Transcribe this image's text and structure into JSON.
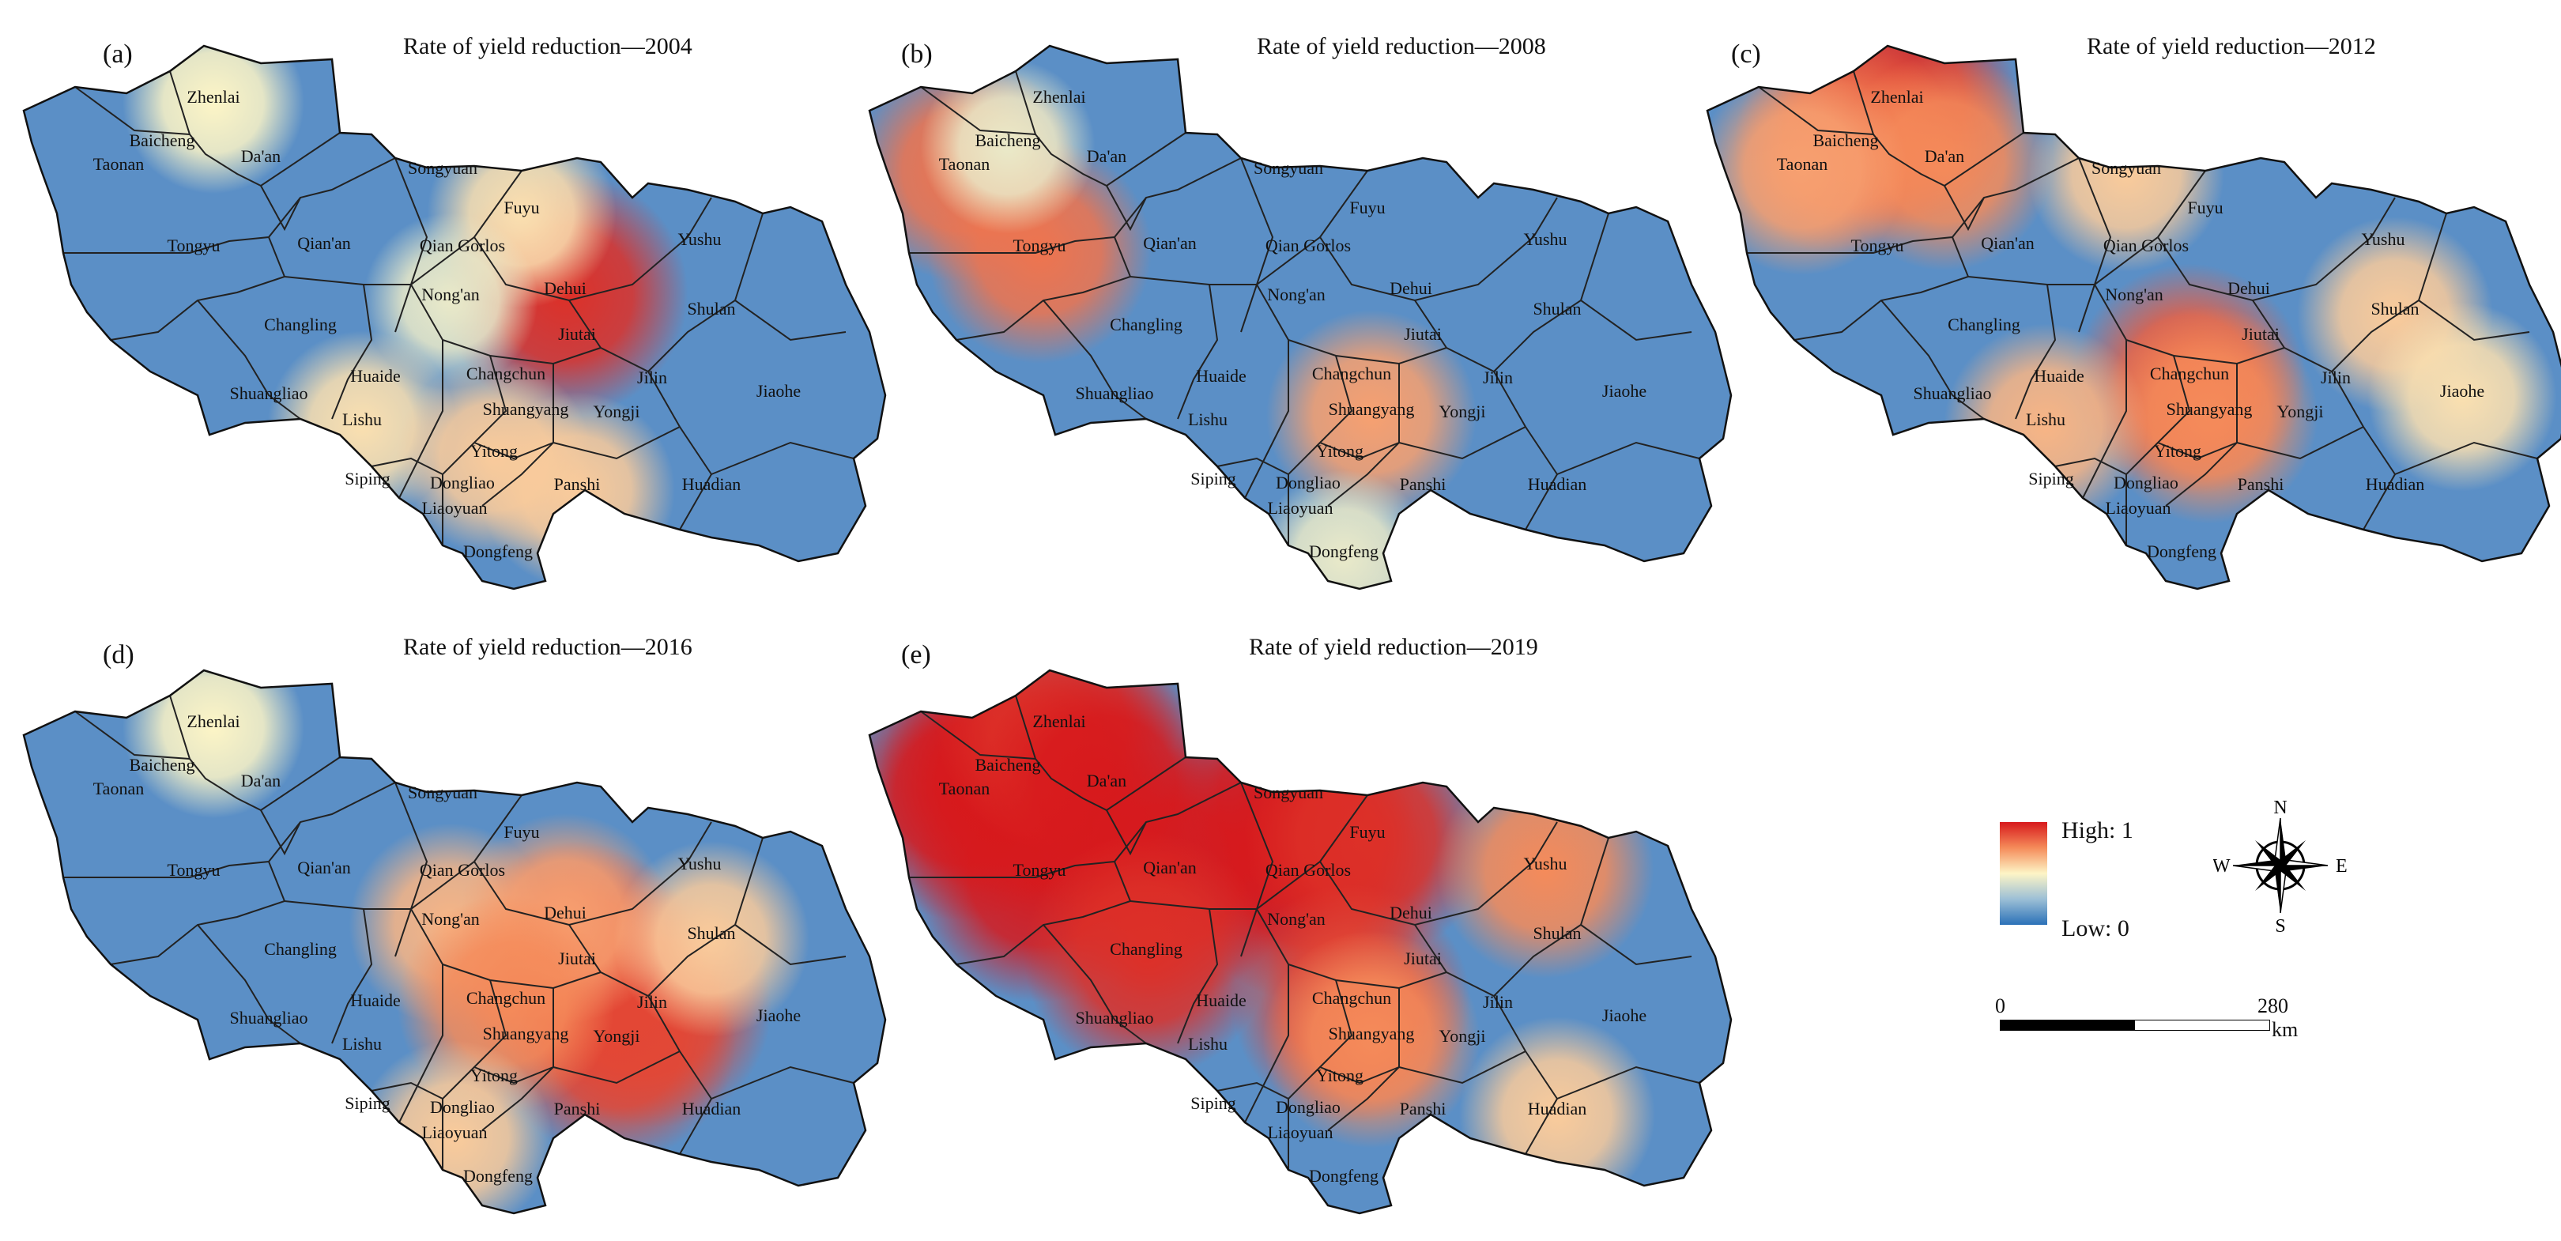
{
  "panels": [
    {
      "letter": "(a)",
      "title": "Rate of yield reduction—2004",
      "year": 2004,
      "hot": [
        [
          "Dehui",
          0.95
        ],
        [
          "Zhenlai",
          0.5
        ],
        [
          "Fuyu",
          0.55
        ],
        [
          "Nong'an",
          0.45
        ],
        [
          "Lishu",
          0.55
        ],
        [
          "Panshi",
          0.6
        ],
        [
          "Yitong",
          0.6
        ]
      ]
    },
    {
      "letter": "(b)",
      "title": "Rate of yield reduction—2008",
      "year": 2008,
      "hot": [
        [
          "Taonan",
          0.8
        ],
        [
          "Tongyu",
          0.8
        ],
        [
          "Baicheng",
          0.45
        ],
        [
          "Shuangyang",
          0.7
        ],
        [
          "Dongfeng",
          0.45
        ]
      ]
    },
    {
      "letter": "(c)",
      "title": "Rate of yield reduction—2012",
      "year": 2012,
      "hot": [
        [
          "Zhenlai",
          0.95
        ],
        [
          "Baicheng",
          0.8
        ],
        [
          "Da'an",
          0.75
        ],
        [
          "Taonan",
          0.7
        ],
        [
          "Changchun",
          0.85
        ],
        [
          "Shuangyang",
          0.75
        ],
        [
          "Shulan",
          0.6
        ],
        [
          "Jiaohe",
          0.55
        ],
        [
          "Lishu",
          0.65
        ],
        [
          "Songyuan",
          0.6
        ]
      ]
    },
    {
      "letter": "(d)",
      "title": "Rate of yield reduction—2016",
      "year": 2016,
      "hot": [
        [
          "Jiutai",
          0.95
        ],
        [
          "Jilin",
          0.9
        ],
        [
          "Yongji",
          0.9
        ],
        [
          "Nong'an",
          0.65
        ],
        [
          "Dehui",
          0.7
        ],
        [
          "Changchun",
          0.75
        ],
        [
          "Liaoyuan",
          0.6
        ],
        [
          "Zhenlai",
          0.5
        ],
        [
          "Shulan",
          0.6
        ]
      ]
    },
    {
      "letter": "(e)",
      "title": "Rate of yield reduction—2019",
      "year": 2019,
      "hot": [
        [
          "Tongyu",
          1
        ],
        [
          "Taonan",
          1
        ],
        [
          "Baicheng",
          1
        ],
        [
          "Zhenlai",
          0.95
        ],
        [
          "Da'an",
          1
        ],
        [
          "Qian'an",
          1
        ],
        [
          "Qian Gorlos",
          1
        ],
        [
          "Songyuan",
          1
        ],
        [
          "Fuyu",
          0.95
        ],
        [
          "Changling",
          0.95
        ],
        [
          "Yushu",
          0.75
        ],
        [
          "Changchun",
          0.9
        ],
        [
          "Shuangyang",
          0.75
        ],
        [
          "Huadian",
          0.6
        ]
      ]
    }
  ],
  "places": [
    "Zhenlai",
    "Baicheng",
    "Taonan",
    "Da'an",
    "Songyuan",
    "Fuyu",
    "Yushu",
    "Tongyu",
    "Qian'an",
    "Qian Gorlos",
    "Nong'an",
    "Dehui",
    "Jiutai",
    "Shulan",
    "Changling",
    "Huaide",
    "Changchun",
    "Shuangliao",
    "Jilin",
    "Jiaohe",
    "Lishu",
    "Shuangyang",
    "Yongji",
    "Yitong",
    "Siping",
    "Dongliao",
    "Liaoyuan",
    "Panshi",
    "Huadian",
    "Dongfeng"
  ],
  "legend": {
    "high": "High: 1",
    "low": "Low: 0",
    "colors": [
      "#d7191c",
      "#fdf5c6",
      "#2b71b8"
    ]
  },
  "compass": {
    "n": "N",
    "s": "S",
    "e": "E",
    "w": "W"
  },
  "scale": {
    "start": "0",
    "end": "280",
    "unit": "km"
  }
}
